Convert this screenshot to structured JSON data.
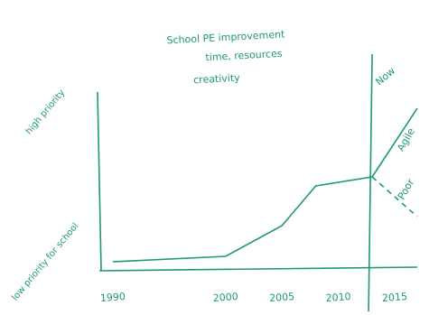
{
  "chart_data": {
    "type": "line",
    "title": "School PE improvement",
    "subtitle_lines": [
      "time, resources",
      "creativity"
    ],
    "x": [
      1990,
      2000,
      2005,
      2008,
      2013
    ],
    "values": [
      0.05,
      0.08,
      0.25,
      0.47,
      0.52
    ],
    "color": "#1f9a6c",
    "series": [
      {
        "name": "Agile",
        "color": "#1f9a6c",
        "x": [
          2013,
          2017
        ],
        "values": [
          0.52,
          0.9
        ],
        "dashed": false
      },
      {
        "name": "Poor",
        "color": "#1f9a6c",
        "x": [
          2013,
          2017
        ],
        "values": [
          0.52,
          0.3
        ],
        "dashed": true
      }
    ],
    "annotations": [
      {
        "text": "Now",
        "x": 2013
      }
    ],
    "xlim": [
      1988,
      2017
    ],
    "xticks": [
      1990,
      2000,
      2005,
      2010,
      2015
    ],
    "ylim": [
      0,
      1
    ],
    "yticks": [
      {
        "value": 0.05,
        "label": "low priority for school"
      },
      {
        "value": 0.88,
        "label": "high priority"
      }
    ],
    "grid": false
  }
}
